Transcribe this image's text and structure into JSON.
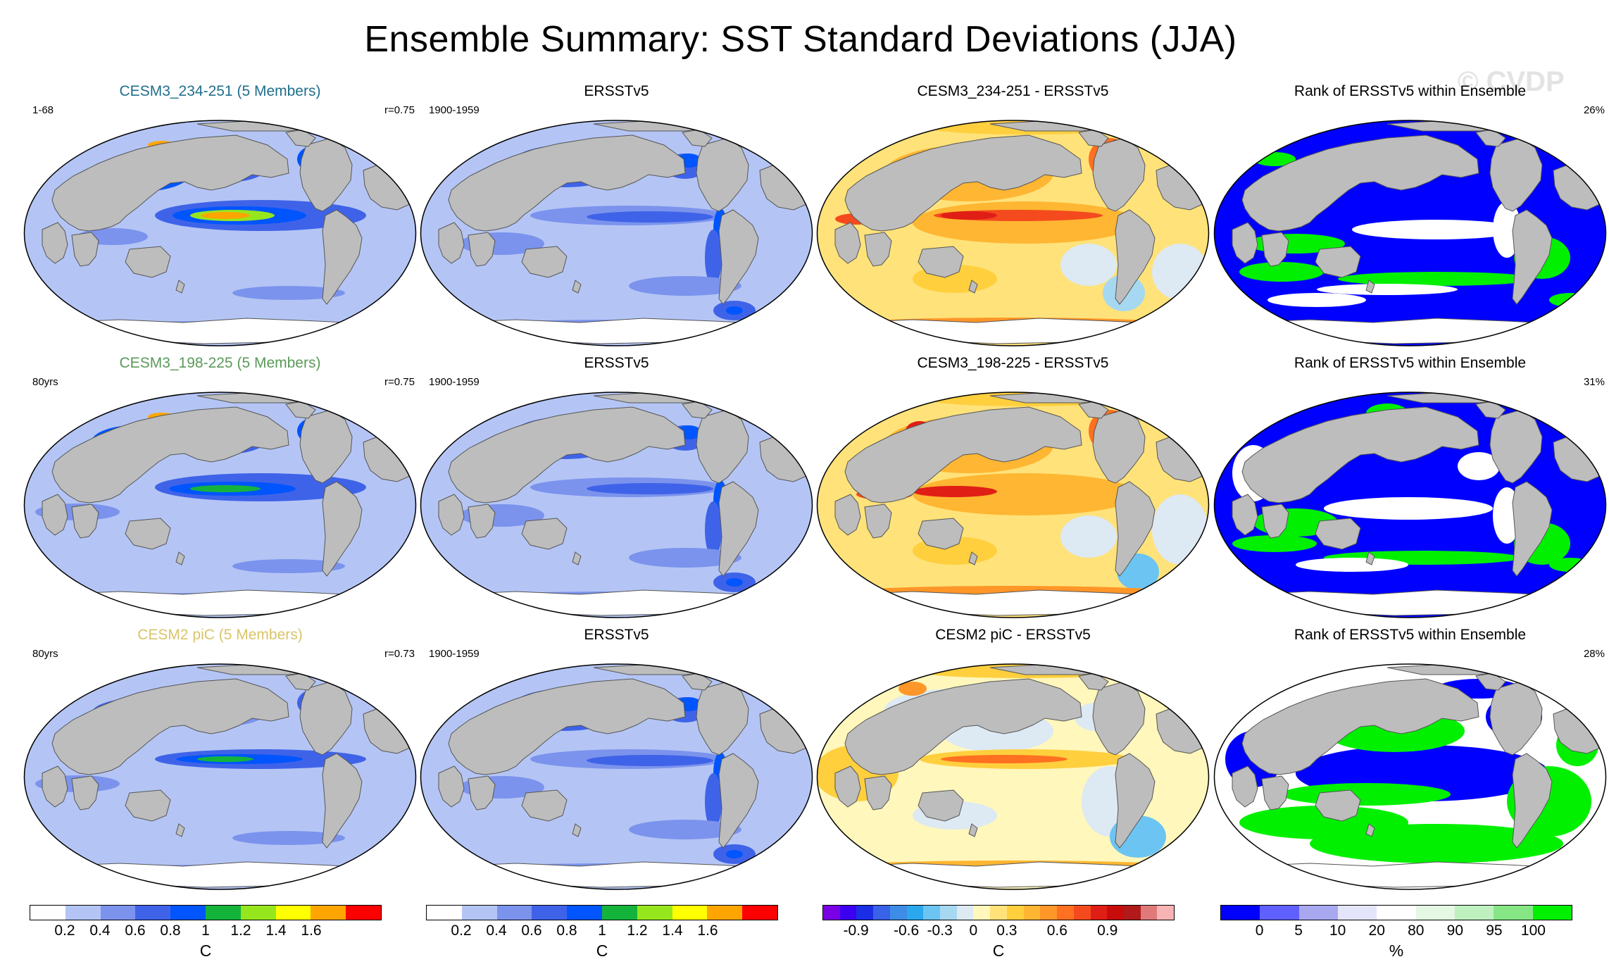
{
  "title": "Ensemble Summary: SST Standard Deviations (JJA)",
  "watermark": "© CVDP",
  "colors": {
    "land": "#bdbdbd",
    "coast": "#555555",
    "sd": [
      "#ffffff",
      "#b4c5f5",
      "#7b93ec",
      "#3f63e8",
      "#0055ff",
      "#14b43c",
      "#96e61e",
      "#ffff00",
      "#ffa500",
      "#ff0000"
    ],
    "diff": [
      "#7a00e6",
      "#3c00f0",
      "#1a2ee6",
      "#3a62e8",
      "#3d8ce6",
      "#2ba7ee",
      "#6cc4f2",
      "#a6d8f2",
      "#dde9f3",
      "#fff7bc",
      "#ffe27a",
      "#ffcf3e",
      "#ffb632",
      "#ff9628",
      "#ff7020",
      "#f44a1e",
      "#e01e16",
      "#c80c0c",
      "#b01a1a",
      "#e07a7a",
      "#f7b4b4"
    ],
    "rank": [
      "#0000ff",
      "#6060ff",
      "#a8a8f0",
      "#e4e4fa",
      "#ffffff",
      "#e4f8e4",
      "#bff0bf",
      "#86e686",
      "#00f000"
    ]
  },
  "rows": [
    {
      "model": {
        "title": "CESM3_234-251 (5 Members)",
        "title_color": "#1f6f8b",
        "left": "1-68",
        "right": "r=0.75",
        "style": "m1"
      },
      "obs": {
        "title": "ERSSTv5",
        "left": "1900-1959",
        "right": "",
        "style": "obs"
      },
      "diff": {
        "title": "CESM3_234-251 - ERSSTv5",
        "left": "",
        "right": "",
        "style": "d1"
      },
      "rank": {
        "title": "Rank of ERSSTv5 within Ensemble",
        "left": "",
        "right": "26%",
        "style": "r1"
      }
    },
    {
      "model": {
        "title": "CESM3_198-225 (5 Members)",
        "title_color": "#5a9a5a",
        "left": "80yrs",
        "right": "r=0.75",
        "style": "m2"
      },
      "obs": {
        "title": "ERSSTv5",
        "left": "1900-1959",
        "right": "",
        "style": "obs"
      },
      "diff": {
        "title": "CESM3_198-225 - ERSSTv5",
        "left": "",
        "right": "",
        "style": "d2"
      },
      "rank": {
        "title": "Rank of ERSSTv5 within Ensemble",
        "left": "",
        "right": "31%",
        "style": "r2"
      }
    },
    {
      "model": {
        "title": "CESM2 piC (5 Members)",
        "title_color": "#d9c56a",
        "left": "80yrs",
        "right": "r=0.73",
        "style": "m3"
      },
      "obs": {
        "title": "ERSSTv5",
        "left": "1900-1959",
        "right": "",
        "style": "obs"
      },
      "diff": {
        "title": "CESM2 piC - ERSSTv5",
        "left": "",
        "right": "",
        "style": "d3"
      },
      "rank": {
        "title": "Rank of ERSSTv5 within Ensemble",
        "left": "",
        "right": "28%",
        "style": "r3"
      }
    }
  ],
  "colorbars": [
    {
      "id": "sd-model",
      "palette": "sd",
      "ticks": [
        {
          "label": "0.2",
          "idx": 1
        },
        {
          "label": "0.4",
          "idx": 2
        },
        {
          "label": "0.6",
          "idx": 3
        },
        {
          "label": "0.8",
          "idx": 4
        },
        {
          "label": "1",
          "idx": 5
        },
        {
          "label": "1.2",
          "idx": 6
        },
        {
          "label": "1.4",
          "idx": 7
        },
        {
          "label": "1.6",
          "idx": 8
        }
      ],
      "unit": "C"
    },
    {
      "id": "sd-obs",
      "palette": "sd",
      "ticks": [
        {
          "label": "0.2",
          "idx": 1
        },
        {
          "label": "0.4",
          "idx": 2
        },
        {
          "label": "0.6",
          "idx": 3
        },
        {
          "label": "0.8",
          "idx": 4
        },
        {
          "label": "1",
          "idx": 5
        },
        {
          "label": "1.2",
          "idx": 6
        },
        {
          "label": "1.4",
          "idx": 7
        },
        {
          "label": "1.6",
          "idx": 8
        }
      ],
      "unit": "C"
    },
    {
      "id": "diff",
      "palette": "diff",
      "ticks": [
        {
          "label": "-0.9",
          "idx": 2
        },
        {
          "label": "-0.6",
          "idx": 5
        },
        {
          "label": "-0.3",
          "idx": 7
        },
        {
          "label": "0",
          "idx": 9
        },
        {
          "label": "0.3",
          "idx": 11
        },
        {
          "label": "0.6",
          "idx": 14
        },
        {
          "label": "0.9",
          "idx": 17
        }
      ],
      "unit": "C"
    },
    {
      "id": "rank",
      "palette": "rank",
      "ticks": [
        {
          "label": "0",
          "idx": 1
        },
        {
          "label": "5",
          "idx": 2
        },
        {
          "label": "10",
          "idx": 3
        },
        {
          "label": "20",
          "idx": 4
        },
        {
          "label": "80",
          "idx": 5
        },
        {
          "label": "90",
          "idx": 6
        },
        {
          "label": "95",
          "idx": 7
        },
        {
          "label": "100",
          "idx": 8
        }
      ],
      "unit": "%"
    }
  ]
}
